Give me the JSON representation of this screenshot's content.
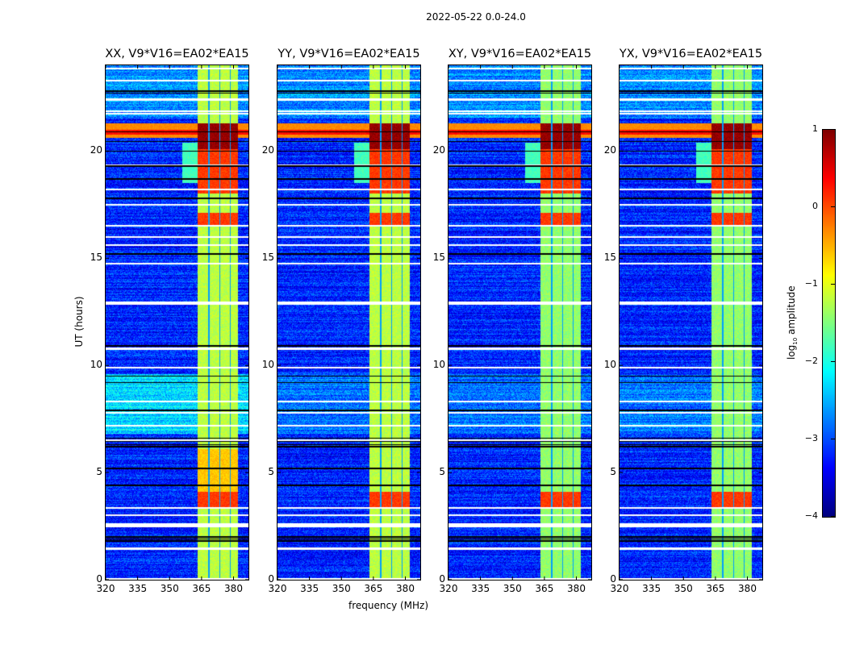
{
  "chart_data": {
    "type": "heatmap",
    "title": "2022-05-22 0.0-24.0",
    "xlabel": "frequency (MHz)",
    "ylabel": "UT (hours)",
    "xlim": [
      320,
      387
    ],
    "ylim": [
      0,
      24
    ],
    "xticks": [
      "320",
      "335",
      "350",
      "365",
      "380"
    ],
    "xtick_values": [
      320,
      335,
      350,
      365,
      380
    ],
    "yticks": [
      "0",
      "5",
      "10",
      "15",
      "20"
    ],
    "ytick_values": [
      0,
      5,
      10,
      15,
      20
    ],
    "panels": [
      {
        "title": "XX, V9*V16=EA02*EA15",
        "pol": "XX"
      },
      {
        "title": "YY, V9*V16=EA02*EA15",
        "pol": "YY"
      },
      {
        "title": "XY, V9*V16=EA02*EA15",
        "pol": "XY"
      },
      {
        "title": "YX, V9*V16=EA02*EA15",
        "pol": "YX"
      }
    ],
    "features": {
      "background_level": -3.2,
      "band_mhz": [
        363,
        382
      ],
      "band_level": -1.2,
      "band_gap_lines_mhz": [
        368.5,
        373.5,
        378.5
      ],
      "rfi_broadband_hours": [
        20.6,
        21.3
      ],
      "rfi_band_strong_hours": [
        [
          18.0,
          21.3
        ],
        [
          16.5,
          17.1
        ],
        [
          3.4,
          4.1
        ]
      ],
      "flagged_hours": [
        23.85,
        23.3,
        22.4,
        21.85,
        21.75,
        19.35,
        18.2,
        17.5,
        16.5,
        16.0,
        15.6,
        14.75,
        12.95,
        12.85,
        10.75,
        10.8,
        9.9,
        8.3,
        7.8,
        7.2,
        6.5,
        3.35,
        3.0,
        2.6,
        2.5,
        1.45,
        0.05
      ],
      "dropout_hours": [
        22.8,
        22.7,
        20.9,
        20.45,
        20.0,
        19.3,
        18.7,
        17.8,
        15.2,
        10.9,
        9.5,
        9.2,
        7.9,
        6.6,
        6.45,
        6.3,
        6.2,
        5.2,
        4.4,
        2.0,
        1.9,
        1.8
      ]
    },
    "colorbar": {
      "label": "log10 amplitude",
      "label_base": "log",
      "label_sub": "10",
      "label_rest": " amplitude",
      "colormap": "jet",
      "range": [
        -4,
        1
      ],
      "ticks": [
        "1",
        "0",
        "−1",
        "−2",
        "−3",
        "−4"
      ],
      "tick_values": [
        1,
        0,
        -1,
        -2,
        -3,
        -4
      ]
    }
  }
}
